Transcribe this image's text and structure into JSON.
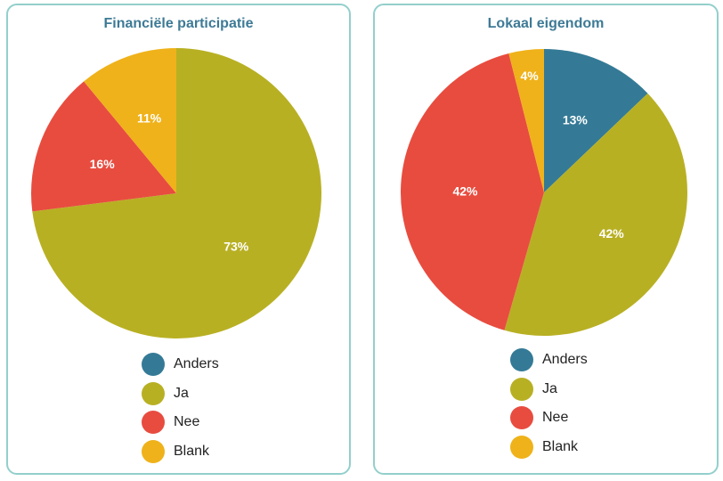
{
  "colors": {
    "Anders": "#347a96",
    "Ja": "#b8b023",
    "Nee": "#e84c3f",
    "Blank": "#efb21a"
  },
  "chart_data": [
    {
      "type": "pie",
      "title": "Financiële participatie",
      "categories": [
        "Anders",
        "Ja",
        "Nee",
        "Blank"
      ],
      "values": [
        0,
        73,
        16,
        11
      ],
      "labels": [
        "",
        "73%",
        "16%",
        "11%"
      ],
      "legend": "bottom"
    },
    {
      "type": "pie",
      "title": "Lokaal eigendom",
      "categories": [
        "Anders",
        "Ja",
        "Nee",
        "Blank"
      ],
      "values": [
        13,
        42,
        42,
        4
      ],
      "labels": [
        "13%",
        "42%",
        "42%",
        "4%"
      ],
      "legend": "bottom"
    }
  ]
}
